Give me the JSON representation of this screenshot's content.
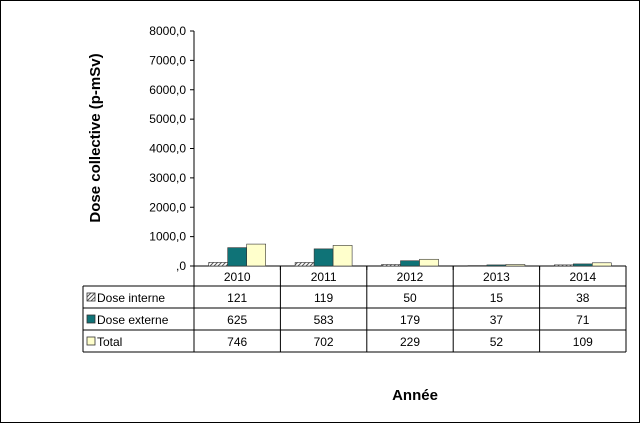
{
  "chart_data": {
    "type": "bar",
    "ylabel": "Dose collective (p-mSv)",
    "xlabel": "Année",
    "ylim": [
      0,
      8000
    ],
    "yticks": [
      "8000,0",
      "7000,0",
      "6000,0",
      "5000,0",
      "4000,0",
      "3000,0",
      "2000,0",
      "1000,0",
      ",0"
    ],
    "categories": [
      "2010",
      "2011",
      "2012",
      "2013",
      "2014"
    ],
    "series": [
      {
        "name": "Dose interne",
        "values": [
          121,
          119,
          50,
          15,
          38
        ],
        "color": "#c8c8c8",
        "pattern": "hatch"
      },
      {
        "name": "Dose externe",
        "values": [
          625,
          583,
          179,
          37,
          71
        ],
        "color": "#0f7377"
      },
      {
        "name": "Total",
        "values": [
          746,
          702,
          229,
          52,
          109
        ],
        "color": "#ffffcc"
      }
    ],
    "grid": false,
    "legend": "data-table"
  }
}
